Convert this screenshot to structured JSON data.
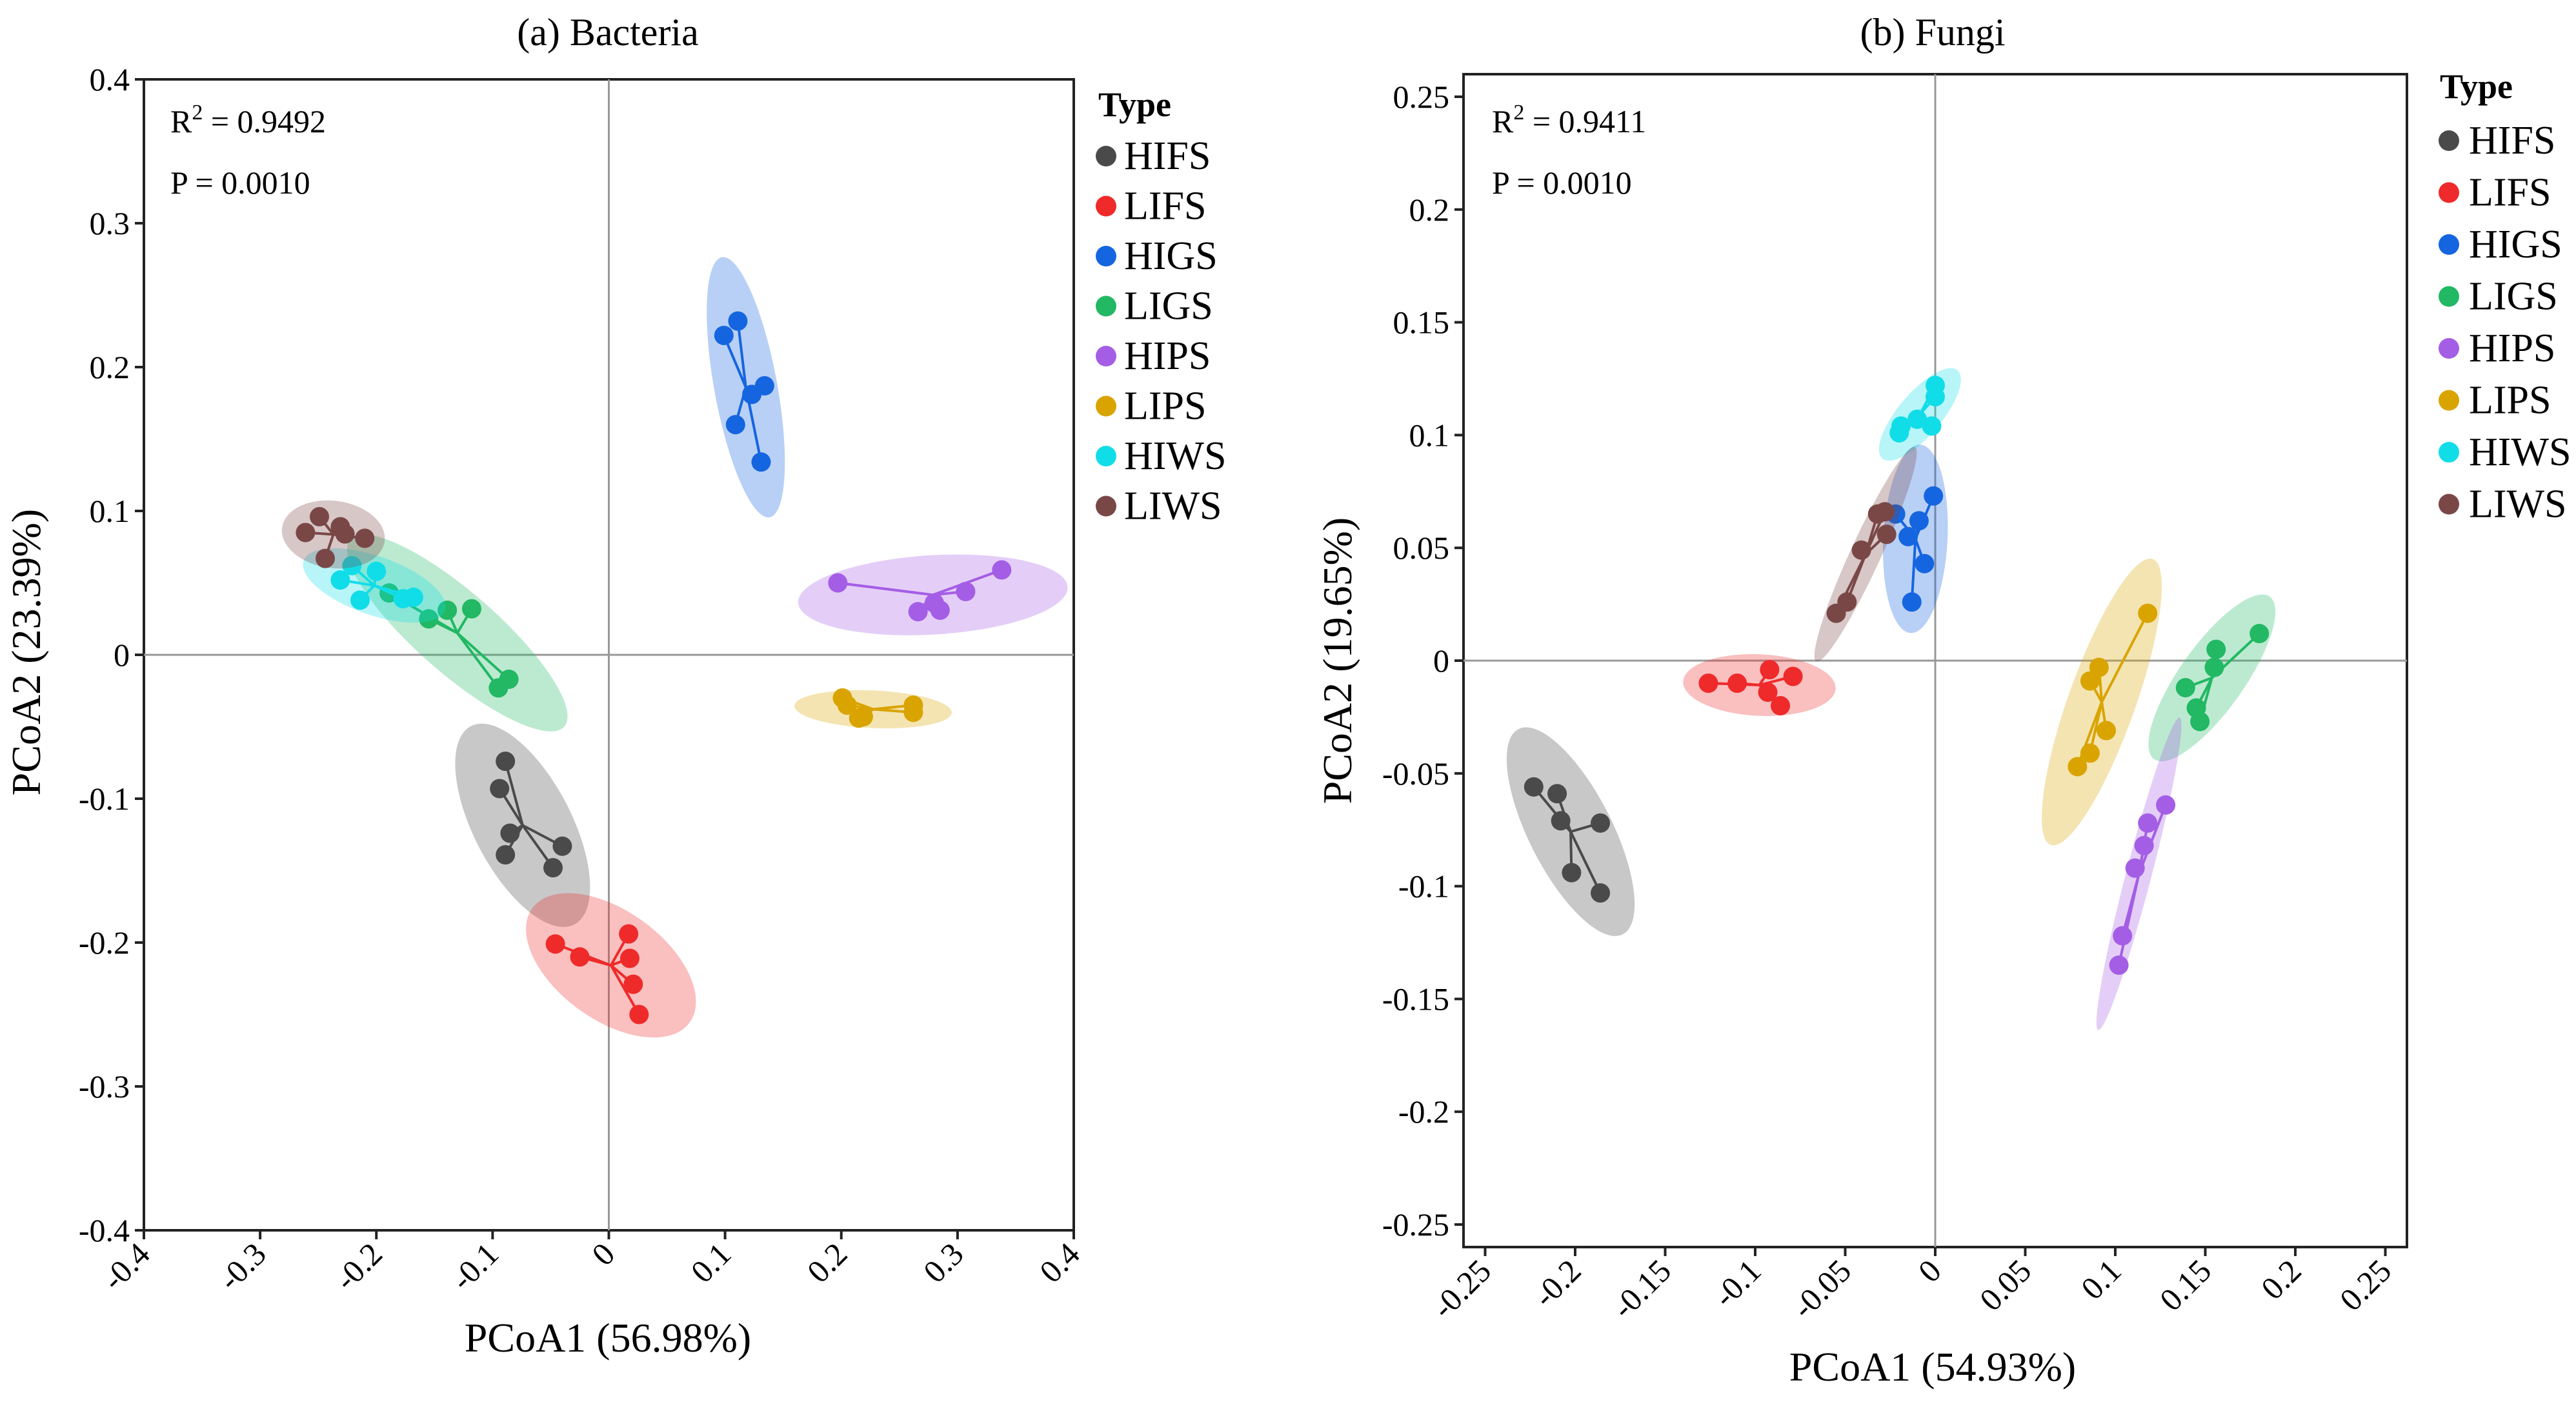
{
  "colors": {
    "HIFS": "#4a4a4a",
    "LIFS": "#ee2a2a",
    "HIGS": "#1565e0",
    "LIGS": "#22b864",
    "HIPS": "#a45ee5",
    "LIPS": "#d9a400",
    "HIWS": "#11dde8",
    "LIWS": "#7a4747"
  },
  "chart_data": [
    {
      "type": "scatter",
      "title": "(a) Bacteria",
      "xlabel": "PCoA1 (56.98%)",
      "ylabel": "PCoA2 (23.39%)",
      "xlim": [
        -0.4,
        0.4
      ],
      "ylim": [
        -0.4,
        0.4
      ],
      "xticks": [
        -0.4,
        -0.3,
        -0.2,
        -0.1,
        0,
        0.1,
        0.2,
        0.3,
        0.4
      ],
      "xtick_labels": [
        "-0.4",
        "-0.3",
        "-0.2",
        "-0.1",
        "0",
        "0.1",
        "0.2",
        "0.3",
        "0.4"
      ],
      "yticks": [
        -0.4,
        -0.3,
        -0.2,
        -0.1,
        0,
        0.1,
        0.2,
        0.3,
        0.4
      ],
      "ytick_labels": [
        "-0.4",
        "-0.3",
        "-0.2",
        "-0.1",
        "0",
        "0.1",
        "0.2",
        "0.3",
        "0.4"
      ],
      "annotations": {
        "r2_label": "R",
        "r2_sup": "2",
        "r2_value": " = 0.9492",
        "p": "P = 0.0010"
      },
      "legend": {
        "title": "Type",
        "position": "right"
      },
      "series": [
        {
          "name": "HIFS",
          "points": [
            [
              -0.089,
              -0.074
            ],
            [
              -0.094,
              -0.093
            ],
            [
              -0.085,
              -0.124
            ],
            [
              -0.089,
              -0.139
            ],
            [
              -0.04,
              -0.133
            ],
            [
              -0.048,
              -0.148
            ]
          ]
        },
        {
          "name": "LIFS",
          "points": [
            [
              -0.046,
              -0.201
            ],
            [
              -0.025,
              -0.21
            ],
            [
              0.017,
              -0.194
            ],
            [
              0.018,
              -0.211
            ],
            [
              0.021,
              -0.229
            ],
            [
              0.026,
              -0.25
            ]
          ]
        },
        {
          "name": "HIGS",
          "points": [
            [
              0.099,
              0.222
            ],
            [
              0.111,
              0.232
            ],
            [
              0.134,
              0.187
            ],
            [
              0.123,
              0.181
            ],
            [
              0.109,
              0.16
            ],
            [
              0.131,
              0.134
            ]
          ]
        },
        {
          "name": "LIGS",
          "points": [
            [
              -0.189,
              0.043
            ],
            [
              -0.155,
              0.025
            ],
            [
              -0.139,
              0.031
            ],
            [
              -0.118,
              0.032
            ],
            [
              -0.095,
              -0.023
            ],
            [
              -0.086,
              -0.017
            ]
          ]
        },
        {
          "name": "HIPS",
          "points": [
            [
              0.197,
              0.05
            ],
            [
              0.266,
              0.03
            ],
            [
              0.28,
              0.036
            ],
            [
              0.285,
              0.031
            ],
            [
              0.307,
              0.044
            ],
            [
              0.338,
              0.059
            ]
          ]
        },
        {
          "name": "LIPS",
          "points": [
            [
              0.201,
              -0.03
            ],
            [
              0.205,
              -0.035
            ],
            [
              0.215,
              -0.044
            ],
            [
              0.219,
              -0.043
            ],
            [
              0.262,
              -0.035
            ],
            [
              0.262,
              -0.04
            ]
          ]
        },
        {
          "name": "HIWS",
          "points": [
            [
              -0.231,
              0.052
            ],
            [
              -0.221,
              0.062
            ],
            [
              -0.214,
              0.038
            ],
            [
              -0.2,
              0.058
            ],
            [
              -0.177,
              0.039
            ],
            [
              -0.168,
              0.04
            ]
          ]
        },
        {
          "name": "LIWS",
          "points": [
            [
              -0.261,
              0.085
            ],
            [
              -0.249,
              0.096
            ],
            [
              -0.244,
              0.067
            ],
            [
              -0.231,
              0.089
            ],
            [
              -0.227,
              0.084
            ],
            [
              -0.21,
              0.081
            ]
          ]
        }
      ]
    },
    {
      "type": "scatter",
      "title": "(b) Fungi",
      "xlabel": "PCoA1 (54.93%)",
      "ylabel": "PCoA2 (19.65%)",
      "xlim": [
        -0.262,
        0.262
      ],
      "ylim": [
        -0.26,
        0.26
      ],
      "xticks": [
        -0.25,
        -0.2,
        -0.15,
        -0.1,
        -0.05,
        0,
        0.05,
        0.1,
        0.15,
        0.2,
        0.25
      ],
      "xtick_labels": [
        "-0.25",
        "-0.2",
        "-0.15",
        "-0.1",
        "-0.05",
        "0",
        "0.05",
        "0.1",
        "0.15",
        "0.2",
        "0.25"
      ],
      "yticks": [
        -0.25,
        -0.2,
        -0.15,
        -0.1,
        -0.05,
        0,
        0.05,
        0.1,
        0.15,
        0.2,
        0.25
      ],
      "ytick_labels": [
        "-0.25",
        "-0.2",
        "-0.15",
        "-0.1",
        "-0.05",
        "0",
        "0.05",
        "0.1",
        "0.15",
        "0.2",
        "0.25"
      ],
      "annotations": {
        "r2_label": "R",
        "r2_sup": "2",
        "r2_value": " = 0.9411",
        "p": "P = 0.0010"
      },
      "legend": {
        "title": "Type",
        "position": "right"
      },
      "series": [
        {
          "name": "HIFS",
          "points": [
            [
              -0.223,
              -0.056
            ],
            [
              -0.21,
              -0.059
            ],
            [
              -0.208,
              -0.071
            ],
            [
              -0.186,
              -0.072
            ],
            [
              -0.202,
              -0.094
            ],
            [
              -0.186,
              -0.103
            ]
          ]
        },
        {
          "name": "LIFS",
          "points": [
            [
              -0.126,
              -0.01
            ],
            [
              -0.11,
              -0.01
            ],
            [
              -0.092,
              -0.004
            ],
            [
              -0.093,
              -0.014
            ],
            [
              -0.079,
              -0.007
            ],
            [
              -0.086,
              -0.02
            ]
          ]
        },
        {
          "name": "HIGS",
          "points": [
            [
              -0.022,
              0.065
            ],
            [
              -0.015,
              0.055
            ],
            [
              -0.009,
              0.062
            ],
            [
              -0.001,
              0.073
            ],
            [
              -0.006,
              0.043
            ],
            [
              -0.013,
              0.026
            ]
          ]
        },
        {
          "name": "LIGS",
          "points": [
            [
              0.139,
              -0.012
            ],
            [
              0.145,
              -0.021
            ],
            [
              0.147,
              -0.027
            ],
            [
              0.156,
              0.005
            ],
            [
              0.155,
              -0.003
            ],
            [
              0.18,
              0.012
            ]
          ]
        },
        {
          "name": "HIPS",
          "points": [
            [
              0.128,
              -0.064
            ],
            [
              0.118,
              -0.072
            ],
            [
              0.116,
              -0.082
            ],
            [
              0.111,
              -0.092
            ],
            [
              0.104,
              -0.122
            ],
            [
              0.102,
              -0.135
            ]
          ]
        },
        {
          "name": "LIPS",
          "points": [
            [
              0.118,
              0.021
            ],
            [
              0.091,
              -0.003
            ],
            [
              0.086,
              -0.009
            ],
            [
              0.095,
              -0.031
            ],
            [
              0.086,
              -0.041
            ],
            [
              0.079,
              -0.047
            ]
          ]
        },
        {
          "name": "HIWS",
          "points": [
            [
              0.0,
              0.122
            ],
            [
              0.0,
              0.117
            ],
            [
              -0.01,
              0.107
            ],
            [
              -0.002,
              0.104
            ],
            [
              -0.02,
              0.101
            ],
            [
              -0.019,
              0.104
            ]
          ]
        },
        {
          "name": "LIWS",
          "points": [
            [
              -0.032,
              0.065
            ],
            [
              -0.028,
              0.066
            ],
            [
              -0.027,
              0.056
            ],
            [
              -0.041,
              0.049
            ],
            [
              -0.049,
              0.026
            ],
            [
              -0.055,
              0.021
            ]
          ]
        }
      ]
    }
  ]
}
